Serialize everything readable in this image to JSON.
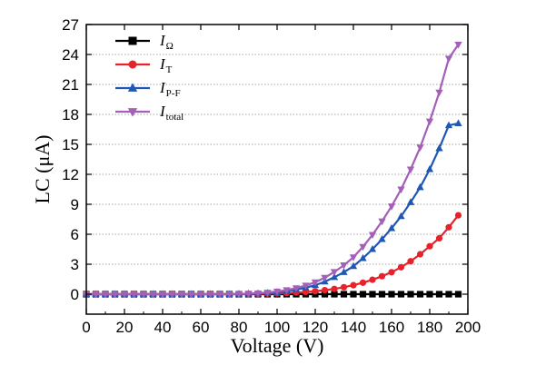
{
  "chart_data": {
    "type": "line",
    "title": "",
    "xlabel": "Voltage (V)",
    "ylabel": "LC (μA)",
    "xlim": [
      0,
      200
    ],
    "ylim": [
      -2,
      27
    ],
    "xticks": [
      0,
      20,
      40,
      60,
      80,
      100,
      120,
      140,
      160,
      180,
      200
    ],
    "yticks": [
      0,
      3,
      6,
      9,
      12,
      15,
      18,
      21,
      24,
      27
    ],
    "grid": "horizontal dotted",
    "legend_position": "top-left",
    "x": [
      0,
      5,
      10,
      15,
      20,
      25,
      30,
      35,
      40,
      45,
      50,
      55,
      60,
      65,
      70,
      75,
      80,
      85,
      90,
      95,
      100,
      105,
      110,
      115,
      120,
      125,
      130,
      135,
      140,
      145,
      150,
      155,
      160,
      165,
      170,
      175,
      180,
      185,
      190,
      195
    ],
    "series": [
      {
        "name": "I",
        "subscript": "Ω",
        "color": "#000000",
        "marker": "square",
        "values": [
          0,
          0,
          0,
          0,
          0,
          0,
          0,
          0,
          0,
          0,
          0,
          0,
          0,
          0,
          0,
          0,
          0,
          0,
          0,
          0,
          0,
          0,
          0,
          0,
          0,
          0,
          0,
          0,
          0,
          0,
          0,
          0,
          0,
          0,
          0,
          0,
          0,
          0,
          0,
          0
        ]
      },
      {
        "name": "I",
        "subscript": "T",
        "color": "#e8222a",
        "marker": "circle",
        "values": [
          0,
          0,
          0,
          0,
          0,
          0,
          0,
          0,
          0,
          0,
          0,
          0,
          0,
          0,
          0,
          0,
          0.01,
          0.02,
          0.03,
          0.05,
          0.08,
          0.11,
          0.16,
          0.22,
          0.3,
          0.4,
          0.53,
          0.7,
          0.9,
          1.15,
          1.45,
          1.8,
          2.2,
          2.7,
          3.3,
          4.0,
          4.8,
          5.6,
          6.7,
          7.9
        ]
      },
      {
        "name": "I",
        "subscript": "P-F",
        "color": "#1f58b4",
        "marker": "triangle-up",
        "values": [
          0,
          0,
          0,
          0,
          0,
          0,
          0,
          0,
          0,
          0,
          0,
          0,
          0,
          0,
          0,
          0,
          0.02,
          0.04,
          0.07,
          0.12,
          0.2,
          0.3,
          0.45,
          0.65,
          0.9,
          1.25,
          1.7,
          2.2,
          2.8,
          3.6,
          4.5,
          5.5,
          6.6,
          7.8,
          9.2,
          10.7,
          12.5,
          14.6,
          16.9,
          17.1
        ]
      },
      {
        "name": "I",
        "subscript": "total",
        "color": "#a45fb8",
        "marker": "triangle-down",
        "values": [
          0,
          0,
          0,
          0,
          0,
          0,
          0,
          0,
          0,
          0,
          0,
          0,
          0,
          0,
          0,
          0,
          0.03,
          0.06,
          0.1,
          0.17,
          0.28,
          0.41,
          0.61,
          0.87,
          1.2,
          1.65,
          2.23,
          2.9,
          3.7,
          4.75,
          5.95,
          7.3,
          8.8,
          10.5,
          12.5,
          14.7,
          17.3,
          20.2,
          23.6,
          25.0
        ]
      }
    ]
  }
}
